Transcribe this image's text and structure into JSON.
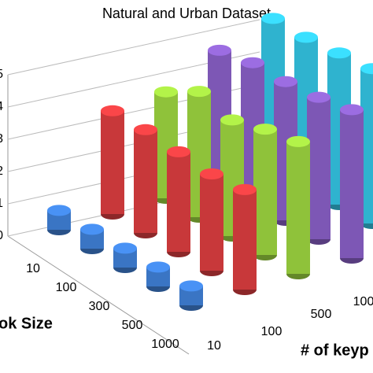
{
  "chart_data": {
    "type": "bar3d",
    "title": "Natural and Urban Dataset",
    "x_label": "ok Size",
    "z_label": "# of keyp",
    "categories": [
      "10",
      "100",
      "300",
      "500",
      "1000"
    ],
    "depth_categories": [
      "10",
      "100",
      "500",
      "100",
      null
    ],
    "series": [
      {
        "color": "#3a75c4",
        "values": [
          0.6,
          0.6,
          0.6,
          0.6,
          0.6
        ]
      },
      {
        "color": "#c8383a",
        "values": [
          3.2,
          3.2,
          3.1,
          3.0,
          3.1
        ]
      },
      {
        "color": "#8fc23a",
        "values": [
          3.3,
          3.9,
          3.6,
          3.9,
          4.1
        ]
      },
      {
        "color": "#7d57b5",
        "values": [
          4.1,
          4.3,
          4.3,
          4.4,
          4.6
        ]
      },
      {
        "color": "#2fb3cf",
        "values": [
          4.6,
          4.6,
          4.7,
          4.8,
          4.9
        ]
      }
    ],
    "ylim": [
      0,
      5
    ],
    "yticks": [
      0,
      1,
      2,
      3,
      4,
      5
    ],
    "grid": true
  }
}
